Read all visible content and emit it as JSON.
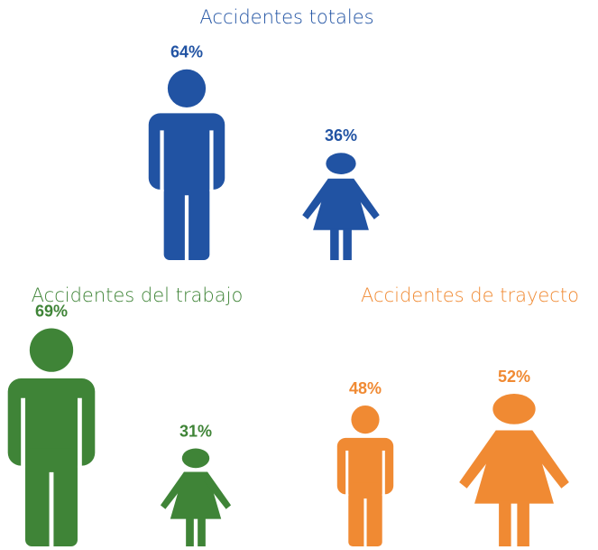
{
  "chart_data": [
    {
      "type": "pictogram",
      "title": "Accidentes totales",
      "categories": [
        null,
        null
      ],
      "values": [
        64,
        36
      ],
      "value_labels": [
        "64%",
        "36%"
      ],
      "color": "#2153a3"
    },
    {
      "type": "pictogram",
      "title": "Accidentes del trabajo",
      "categories": [
        null,
        null
      ],
      "values": [
        69,
        31
      ],
      "value_labels": [
        "69%",
        "31%"
      ],
      "color": "#3f8437"
    },
    {
      "type": "pictogram",
      "title": "Accidentes de trayecto",
      "categories": [
        null,
        null
      ],
      "values": [
        48,
        52
      ],
      "value_labels": [
        "48%",
        "52%"
      ],
      "color": "#f08a33"
    }
  ]
}
